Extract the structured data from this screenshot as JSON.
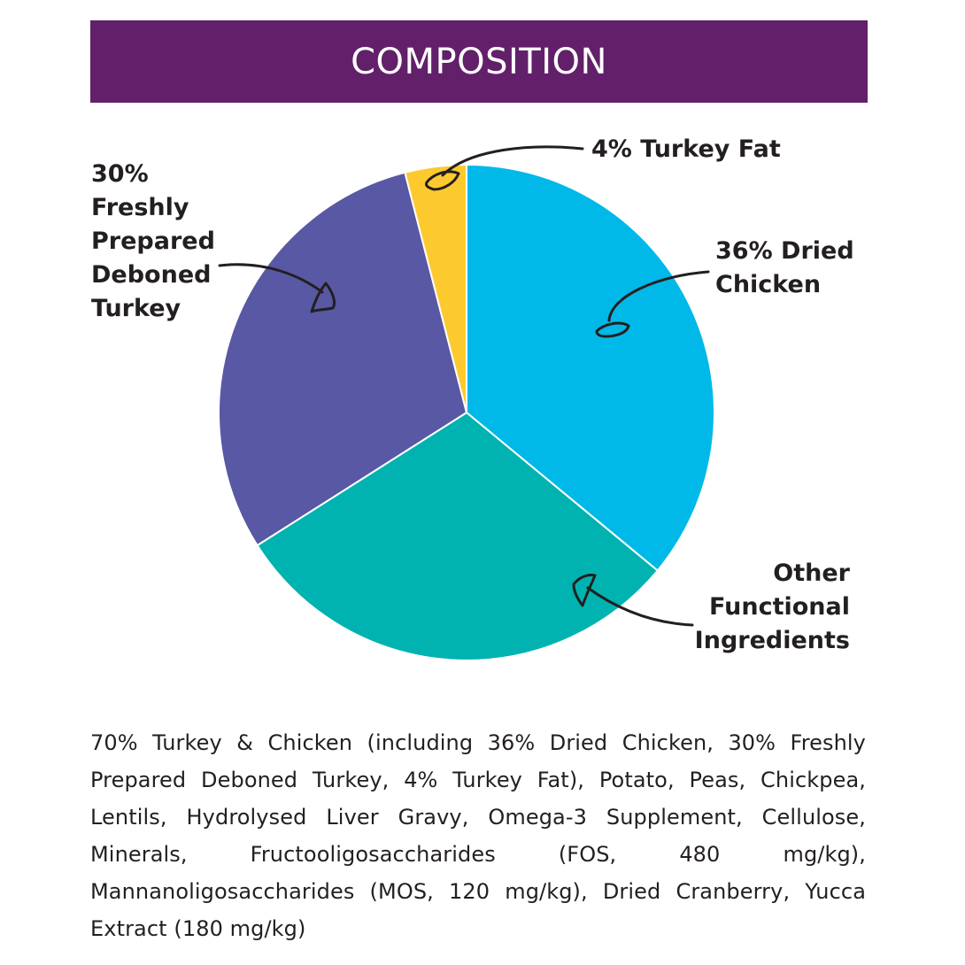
{
  "header": {
    "title": "COMPOSITION",
    "background_color": "#621f6a"
  },
  "chart_data": {
    "type": "pie",
    "title": "COMPOSITION",
    "slices": [
      {
        "label": "36% Dried Chicken",
        "value": 36,
        "color": "#00b9e8"
      },
      {
        "label": "Other Functional Ingredients",
        "value": 30,
        "color": "#00b3b0"
      },
      {
        "label": "30% Freshly Prepared Deboned Turkey",
        "value": 30,
        "color": "#5858a4"
      },
      {
        "label": "4% Turkey Fat",
        "value": 4,
        "color": "#fcca2f"
      }
    ],
    "start_angle": "12 o'clock",
    "direction": "clockwise",
    "annotations": {
      "fat_lines": [
        "4% Turkey Fat"
      ],
      "chicken_lines": [
        "36% Dried",
        "Chicken"
      ],
      "turkey_lines": [
        "30%",
        "Freshly",
        "Prepared",
        "Deboned",
        "Turkey"
      ],
      "other_lines": [
        "Other",
        "Functional",
        "Ingredients"
      ]
    }
  },
  "ingredients_text": "70% Turkey & Chicken (including 36% Dried Chicken, 30% Freshly Prepared Deboned Turkey, 4% Turkey Fat), Potato, Peas, Chickpea, Lentils,  Hydrolysed Liver Gravy, Omega-3 Supplement, Cellulose, Minerals, Fructooligosaccharides (FOS, 480 mg/kg), Mannanoligosaccharides (MOS, 120 mg/kg), Dried Cranberry, Yucca Extract (180 mg/kg)"
}
